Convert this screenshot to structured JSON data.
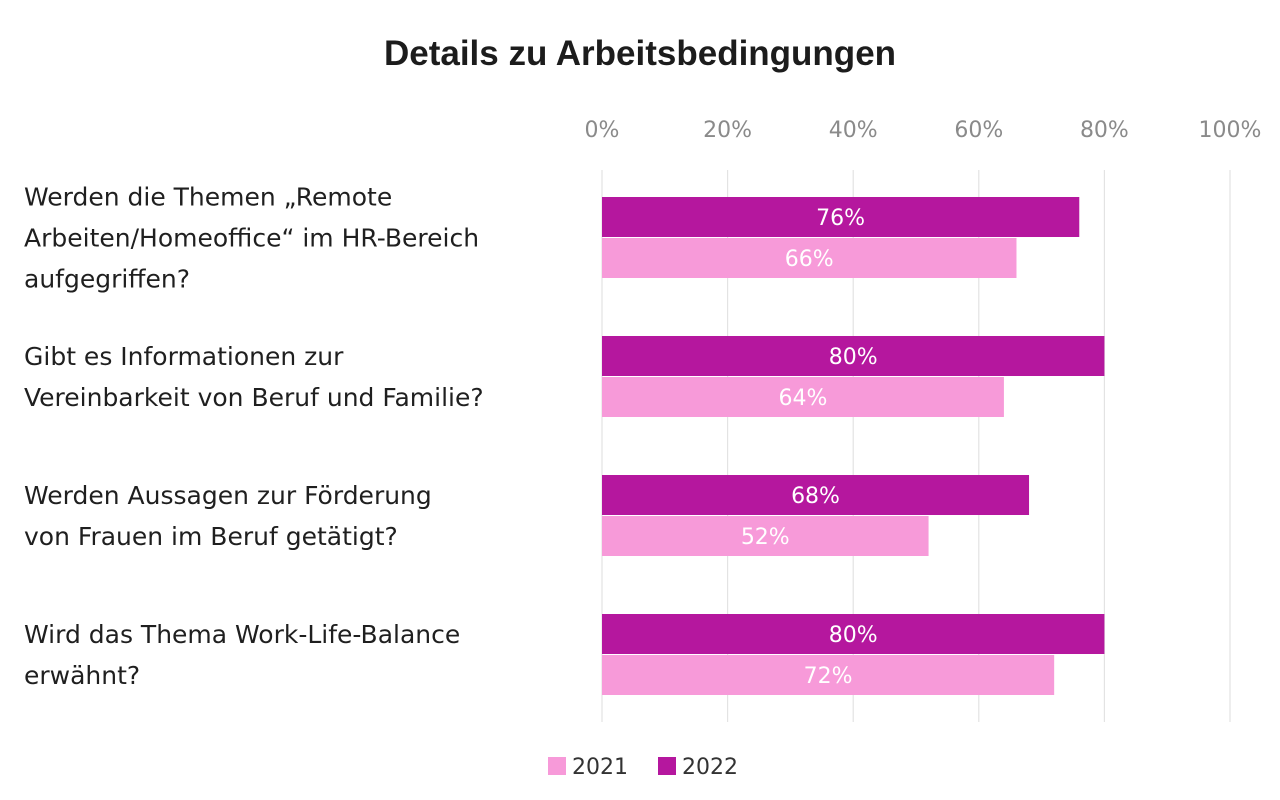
{
  "chart_data": {
    "type": "bar",
    "orientation": "horizontal",
    "title": "Details zu Arbeitsbedingungen",
    "xlabel": "",
    "ylabel": "",
    "xlim": [
      0,
      100
    ],
    "x_ticks": [
      "0%",
      "20%",
      "40%",
      "60%",
      "80%",
      "100%"
    ],
    "grid": true,
    "legend_position": "bottom",
    "categories": [
      [
        "Werden die Themen „Remote",
        "Arbeiten/Homeoffice“ im HR-Bereich",
        "aufgegriffen?"
      ],
      [
        "Gibt es Informationen zur",
        "Vereinbarkeit von Beruf und Familie?"
      ],
      [
        "Werden Aussagen zur Förderung",
        "von Frauen im Beruf getätigt?"
      ],
      [
        "Wird das Thema Work-Life-Balance",
        "erwähnt?"
      ]
    ],
    "series": [
      {
        "name": "2022",
        "color": "#b5179e",
        "values": [
          76,
          80,
          68,
          80
        ],
        "labels": [
          "76%",
          "80%",
          "68%",
          "80%"
        ]
      },
      {
        "name": "2021",
        "color": "#f79ad9",
        "values": [
          66,
          64,
          52,
          72
        ],
        "labels": [
          "66%",
          "64%",
          "52%",
          "72%"
        ]
      }
    ],
    "legend_order": [
      "2021",
      "2022"
    ]
  }
}
